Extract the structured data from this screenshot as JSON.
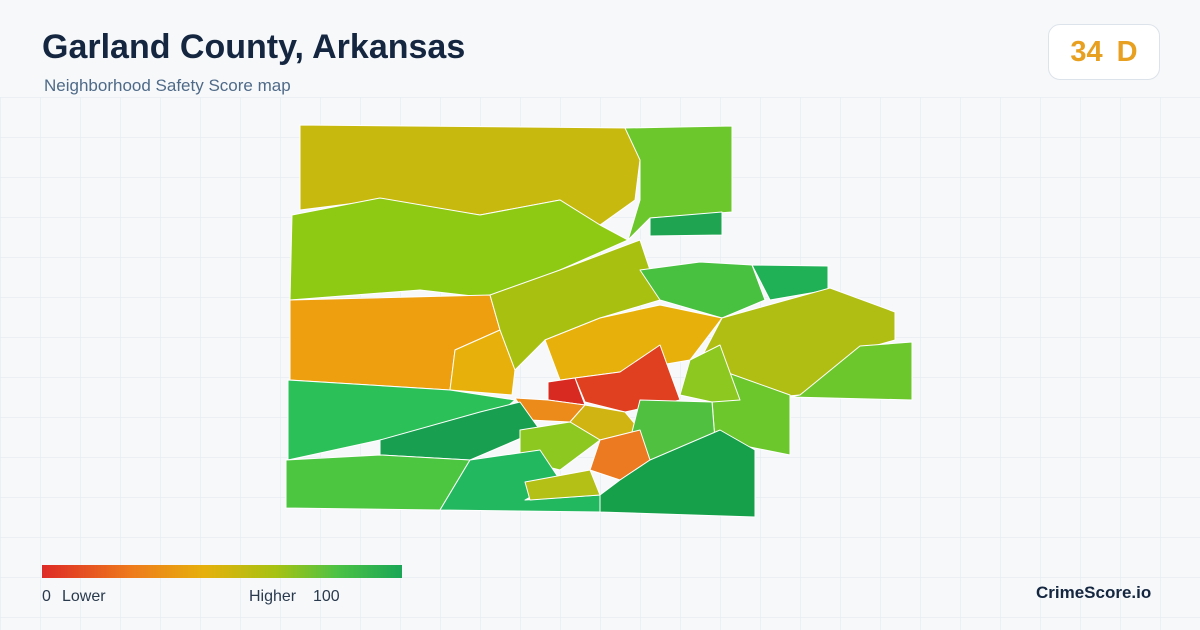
{
  "header": {
    "title": "Garland County, Arkansas",
    "subtitle": "Neighborhood Safety Score map"
  },
  "score": {
    "value": 34,
    "grade": "D"
  },
  "legend": {
    "min": 0,
    "low_label": "Lower",
    "high_label": "Higher",
    "max": 100
  },
  "footer": {
    "brand": "CrimeScore.io"
  }
}
